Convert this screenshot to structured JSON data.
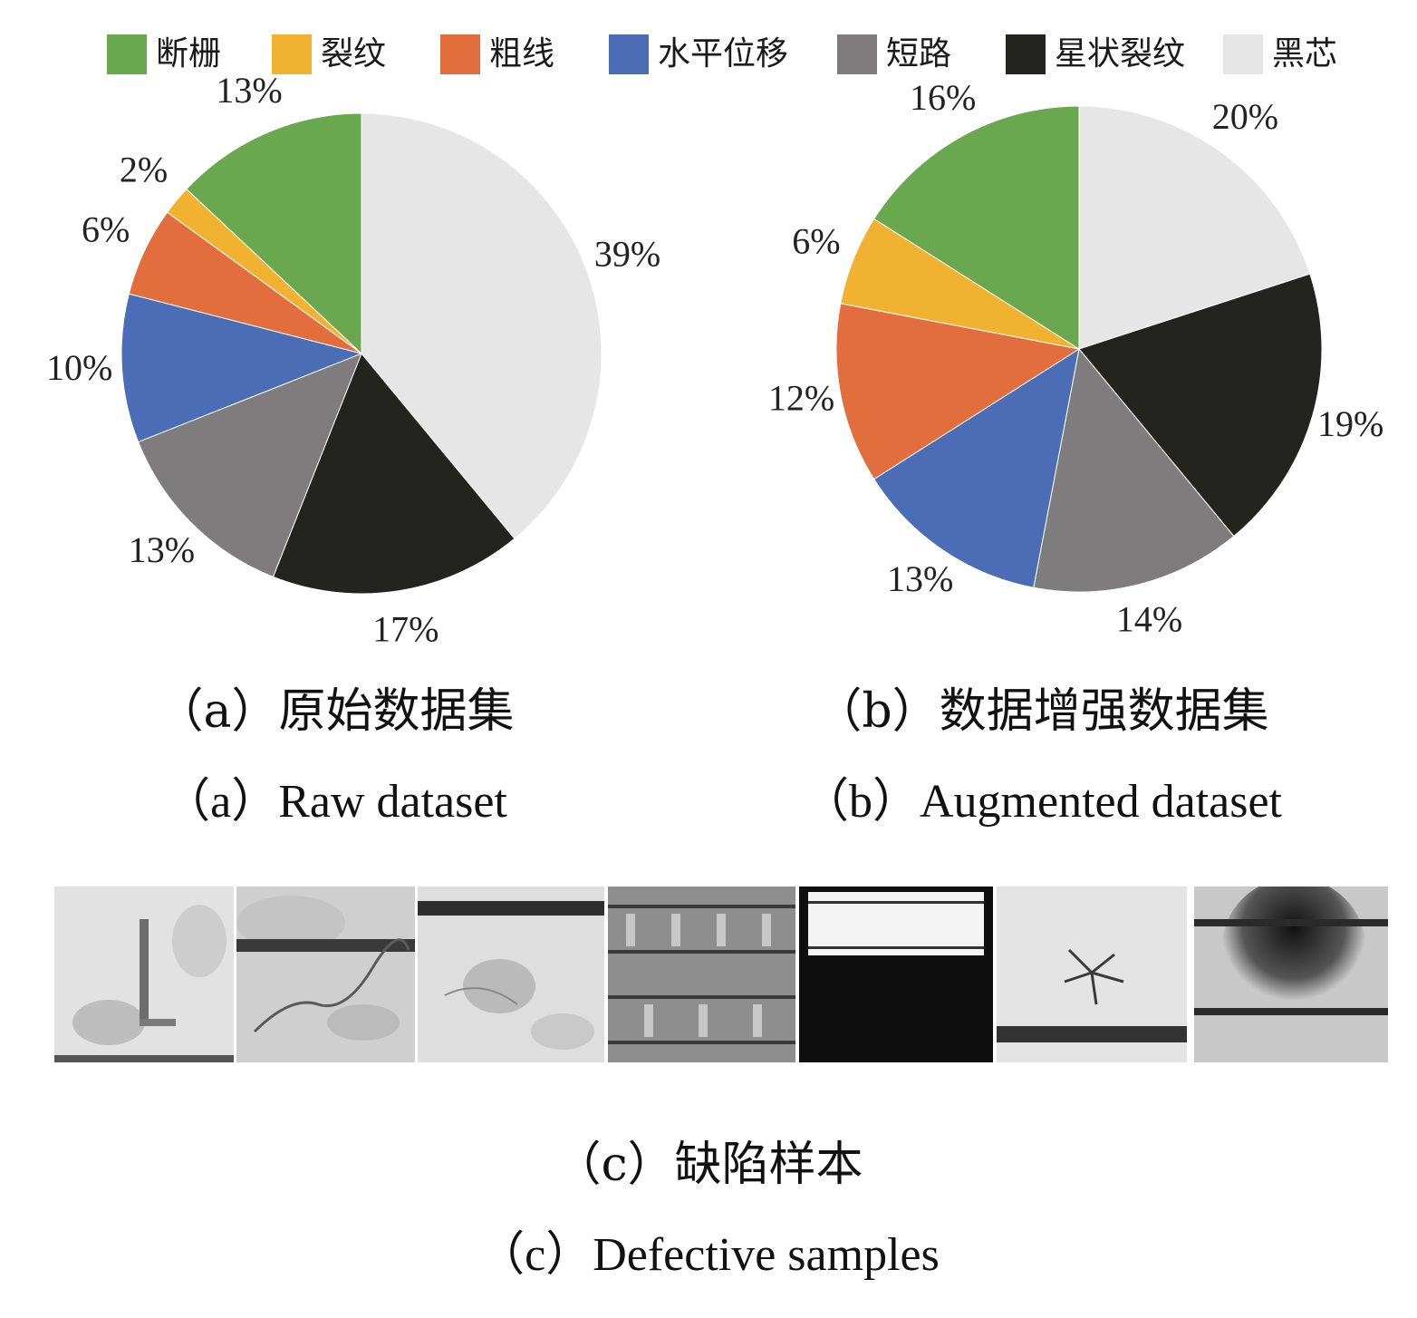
{
  "legend": [
    {
      "label": "断栅",
      "color": "#6aa84f"
    },
    {
      "label": "裂纹",
      "color": "#f1b232"
    },
    {
      "label": "粗线",
      "color": "#e26e3d"
    },
    {
      "label": "水平位移",
      "color": "#4a6db5"
    },
    {
      "label": "短路",
      "color": "#7f7c7d"
    },
    {
      "label": "星状裂纹",
      "color": "#232320"
    },
    {
      "label": "黑芯",
      "color": "#e6e6e6"
    }
  ],
  "chart_data": [
    {
      "type": "pie",
      "title": "（a）原始数据集",
      "subtitle": "（a）Raw dataset",
      "slices": [
        {
          "category": "黑芯",
          "value": 39,
          "label": "39%"
        },
        {
          "category": "星状裂纹",
          "value": 17,
          "label": "17%"
        },
        {
          "category": "短路",
          "value": 13,
          "label": "13%"
        },
        {
          "category": "水平位移",
          "value": 10,
          "label": "10%"
        },
        {
          "category": "粗线",
          "value": 6,
          "label": "6%"
        },
        {
          "category": "裂纹",
          "value": 2,
          "label": "2%"
        },
        {
          "category": "断栅",
          "value": 13,
          "label": "13%"
        }
      ]
    },
    {
      "type": "pie",
      "title": "（b）数据增强数据集",
      "subtitle": "（b）Augmented dataset",
      "slices": [
        {
          "category": "黑芯",
          "value": 20,
          "label": "20%"
        },
        {
          "category": "星状裂纹",
          "value": 19,
          "label": "19%"
        },
        {
          "category": "短路",
          "value": 14,
          "label": "14%"
        },
        {
          "category": "水平位移",
          "value": 13,
          "label": "13%"
        },
        {
          "category": "粗线",
          "value": 12,
          "label": "12%"
        },
        {
          "category": "裂纹",
          "value": 6,
          "label": "6%"
        },
        {
          "category": "断栅",
          "value": 16,
          "label": "16%"
        }
      ]
    }
  ],
  "samples": {
    "caption_cn": "（c）缺陷样本",
    "caption_en": "（c）Defective samples"
  }
}
